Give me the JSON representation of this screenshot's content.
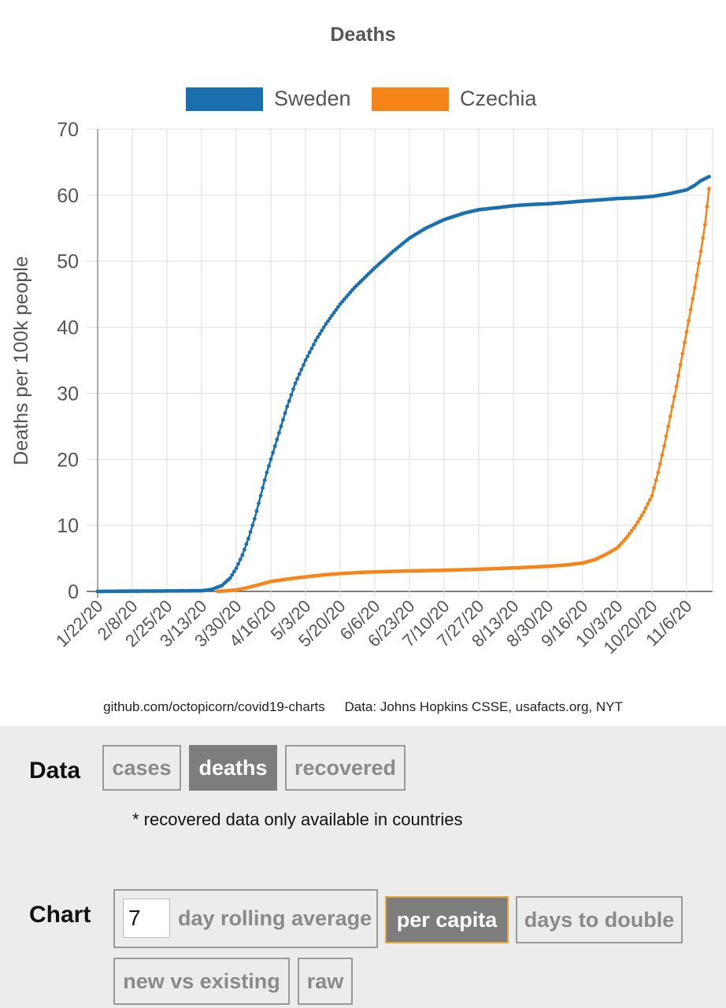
{
  "chart_data": {
    "type": "line",
    "title": "Deaths",
    "ylabel": "Deaths per 100k people",
    "xlabel": "",
    "ylim": [
      0,
      70
    ],
    "yticks": [
      0,
      10,
      20,
      30,
      40,
      50,
      60,
      70
    ],
    "x_start_date": "1/22/20",
    "x_tick_labels": [
      "1/22/20",
      "2/8/20",
      "2/25/20",
      "3/13/20",
      "3/30/20",
      "4/16/20",
      "5/3/20",
      "5/20/20",
      "6/6/20",
      "6/23/20",
      "7/10/20",
      "7/27/20",
      "8/13/20",
      "8/30/20",
      "9/16/20",
      "10/3/20",
      "10/20/20",
      "11/6/20"
    ],
    "grid": true,
    "legend_position": "top",
    "series": [
      {
        "name": "Sweden",
        "color": "#1a6fae",
        "points": [
          [
            "1/22/20",
            0
          ],
          [
            "3/13/20",
            0.1
          ],
          [
            "3/18/20",
            0.3
          ],
          [
            "3/23/20",
            0.9
          ],
          [
            "3/27/20",
            2
          ],
          [
            "3/30/20",
            3.5
          ],
          [
            "4/2/20",
            5.5
          ],
          [
            "4/5/20",
            8
          ],
          [
            "4/8/20",
            11
          ],
          [
            "4/11/20",
            14.5
          ],
          [
            "4/14/20",
            18
          ],
          [
            "4/16/20",
            20
          ],
          [
            "4/20/20",
            24
          ],
          [
            "4/24/20",
            28
          ],
          [
            "4/28/20",
            31.5
          ],
          [
            "5/3/20",
            35
          ],
          [
            "5/8/20",
            38
          ],
          [
            "5/13/20",
            40.5
          ],
          [
            "5/20/20",
            43.5
          ],
          [
            "5/27/20",
            46
          ],
          [
            "6/6/20",
            49
          ],
          [
            "6/15/20",
            51.5
          ],
          [
            "6/23/20",
            53.5
          ],
          [
            "7/1/20",
            55
          ],
          [
            "7/10/20",
            56.3
          ],
          [
            "7/20/20",
            57.3
          ],
          [
            "7/27/20",
            57.8
          ],
          [
            "8/5/20",
            58.1
          ],
          [
            "8/13/20",
            58.4
          ],
          [
            "8/22/20",
            58.6
          ],
          [
            "8/30/20",
            58.7
          ],
          [
            "9/8/20",
            58.9
          ],
          [
            "9/16/20",
            59.1
          ],
          [
            "9/25/20",
            59.3
          ],
          [
            "10/3/20",
            59.5
          ],
          [
            "10/12/20",
            59.6
          ],
          [
            "10/20/20",
            59.8
          ],
          [
            "10/28/20",
            60.2
          ],
          [
            "11/6/20",
            60.8
          ],
          [
            "11/10/20",
            61.5
          ],
          [
            "11/13/20",
            62.2
          ],
          [
            "11/17/20",
            62.8
          ]
        ]
      },
      {
        "name": "Czechia",
        "color": "#f58518",
        "points": [
          [
            "3/21/20",
            0
          ],
          [
            "3/30/20",
            0.2
          ],
          [
            "4/5/20",
            0.6
          ],
          [
            "4/10/20",
            1.0
          ],
          [
            "4/16/20",
            1.5
          ],
          [
            "4/25/20",
            1.9
          ],
          [
            "5/3/20",
            2.2
          ],
          [
            "5/12/20",
            2.5
          ],
          [
            "5/20/20",
            2.7
          ],
          [
            "6/1/20",
            2.9
          ],
          [
            "6/6/20",
            2.95
          ],
          [
            "6/23/20",
            3.1
          ],
          [
            "7/10/20",
            3.2
          ],
          [
            "7/27/20",
            3.35
          ],
          [
            "8/13/20",
            3.55
          ],
          [
            "8/30/20",
            3.8
          ],
          [
            "9/8/20",
            4.0
          ],
          [
            "9/16/20",
            4.3
          ],
          [
            "9/22/20",
            4.8
          ],
          [
            "9/28/20",
            5.7
          ],
          [
            "10/3/20",
            6.6
          ],
          [
            "10/8/20",
            8.3
          ],
          [
            "10/12/20",
            10
          ],
          [
            "10/16/20",
            12
          ],
          [
            "10/20/20",
            14.5
          ],
          [
            "10/23/20",
            18
          ],
          [
            "10/26/20",
            22
          ],
          [
            "10/29/20",
            26.5
          ],
          [
            "11/1/20",
            31
          ],
          [
            "11/4/20",
            36
          ],
          [
            "11/7/20",
            41
          ],
          [
            "11/10/20",
            46
          ],
          [
            "11/13/20",
            51.5
          ],
          [
            "11/15/20",
            55.5
          ],
          [
            "11/17/20",
            61
          ]
        ]
      }
    ]
  },
  "footer": {
    "source_link": "github.com/octopicorn/covid19-charts",
    "data_credit": "Data: Johns Hopkins CSSE, usafacts.org, NYT"
  },
  "controls": {
    "data_label": "Data",
    "data_buttons": [
      "cases",
      "deaths",
      "recovered"
    ],
    "data_selected": "deaths",
    "note": "* recovered data only available in countries",
    "chart_label": "Chart",
    "rolling_days": "7",
    "rolling_label": "day rolling average",
    "per_capita": "per capita",
    "days_to_double": "days to double",
    "new_vs_existing": "new vs existing",
    "raw": "raw"
  }
}
